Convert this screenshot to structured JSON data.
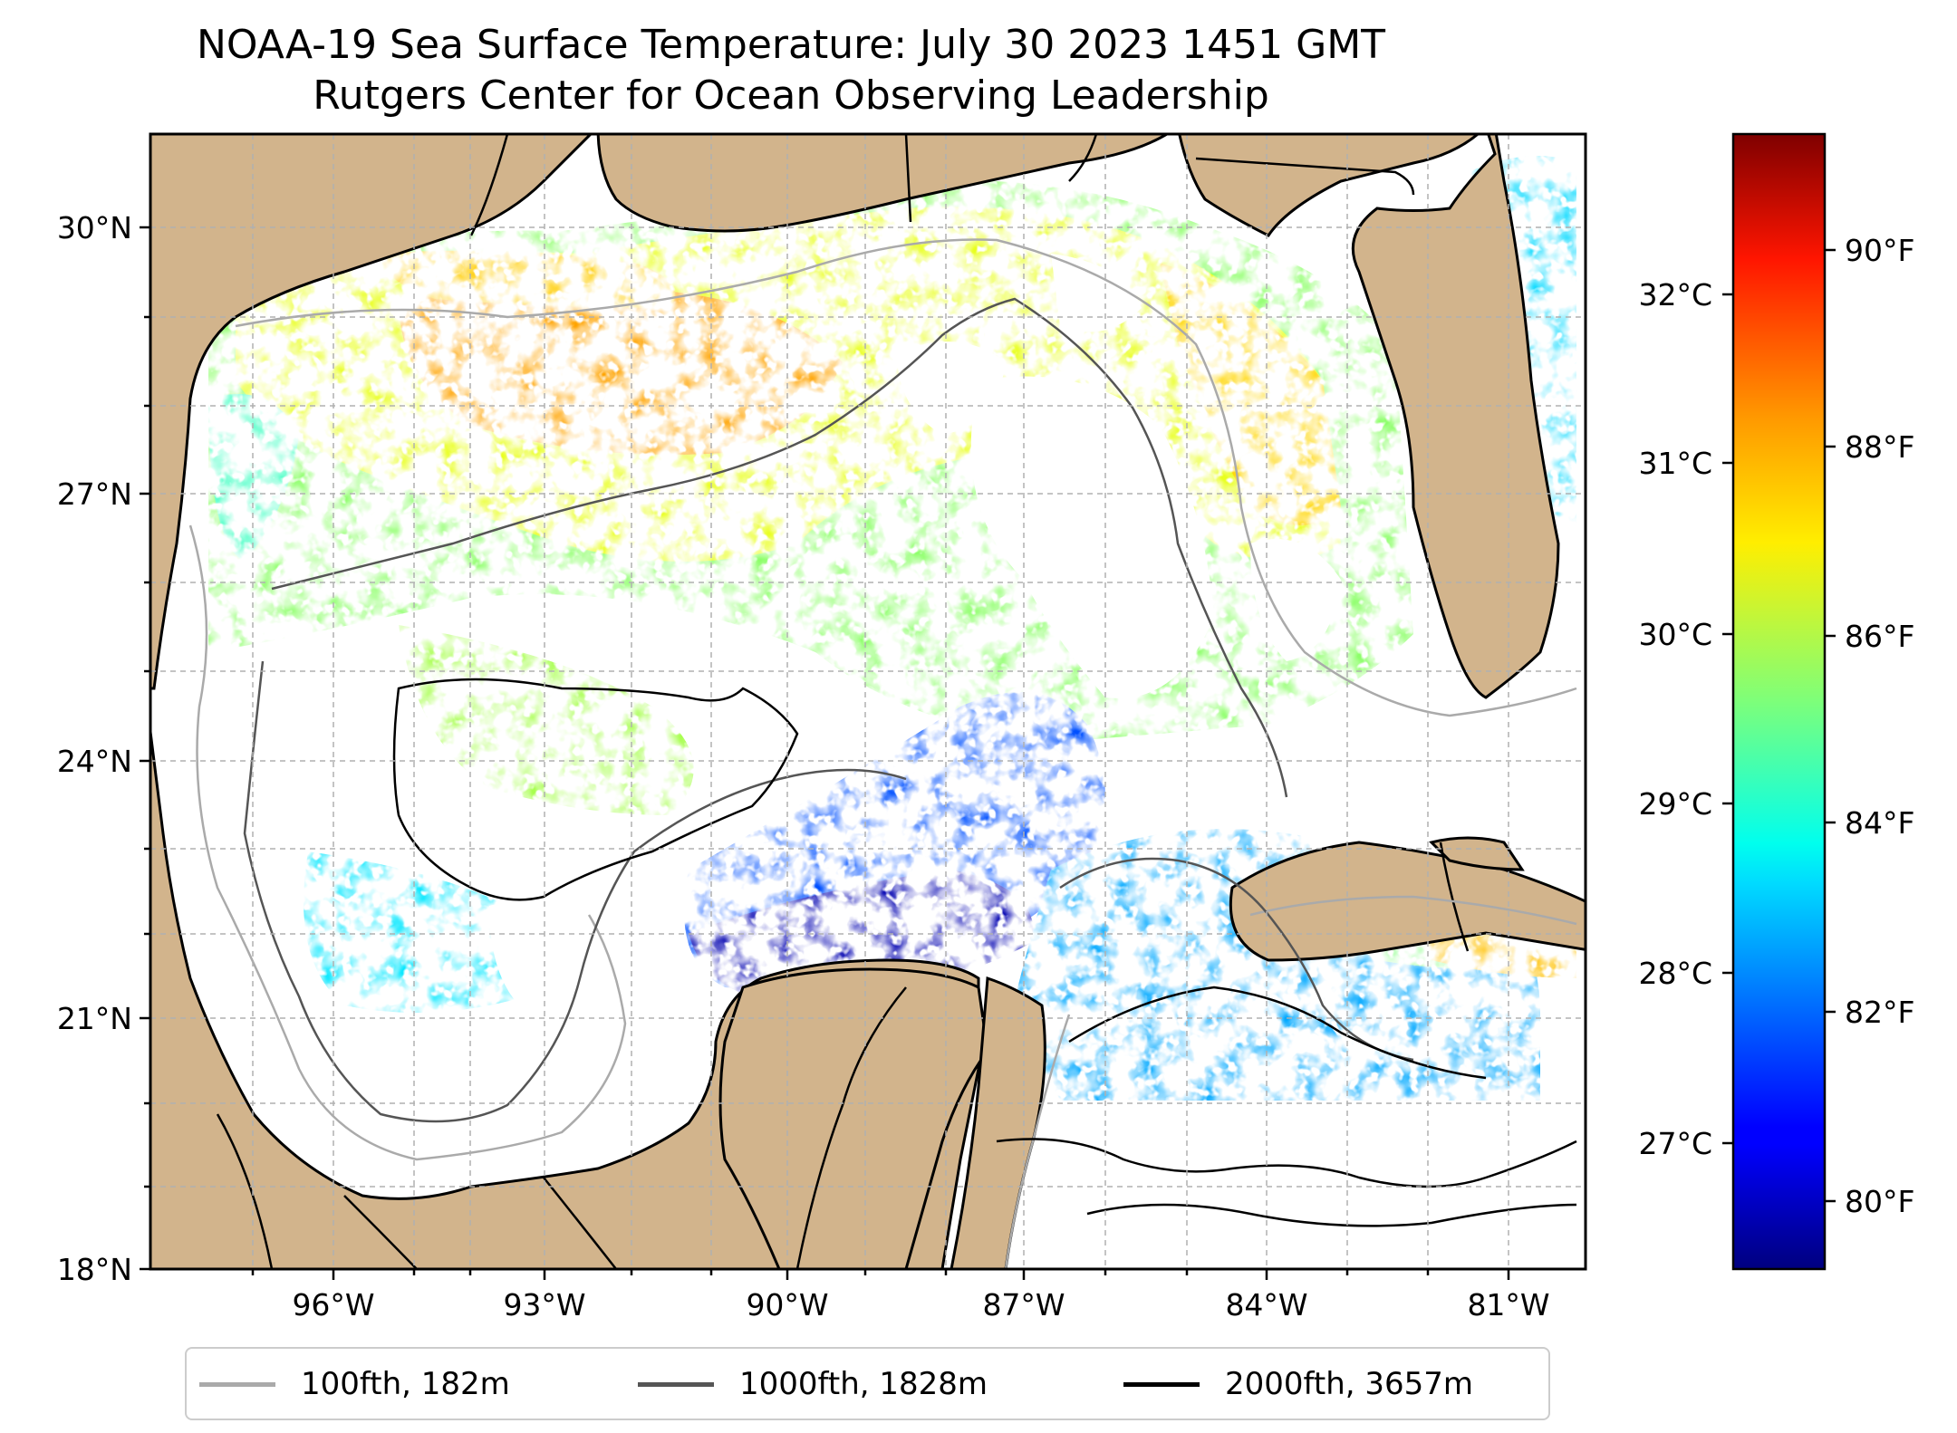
{
  "map": {
    "title_line1": "NOAA-19 Sea Surface Temperature: July 30 2023 1451 GMT",
    "title_line2": "Rutgers Center for Ocean Observing Leadership",
    "lat_ticks": [
      "30°N",
      "27°N",
      "24°N",
      "21°N",
      "18°N"
    ],
    "lon_ticks": [
      "96°W",
      "93°W",
      "90°W",
      "87°W",
      "84°W",
      "81°W"
    ],
    "colors": {
      "land": "#d2b48c",
      "no_data": "#ffffff",
      "gridline": "#b0b0b0",
      "contour_100fth": "#aaaaaa",
      "contour_1000fth": "#555555",
      "contour_2000fth": "#000000"
    }
  },
  "colorbar": {
    "colormap": "jet",
    "celsius_ticks": [
      "32°C",
      "31°C",
      "30°C",
      "29°C",
      "28°C",
      "27°C"
    ],
    "fahrenheit_ticks": [
      "90°F",
      "88°F",
      "86°F",
      "84°F",
      "82°F",
      "80°F"
    ]
  },
  "legend": {
    "items": [
      {
        "label": "100fth, 182m",
        "color": "#aaaaaa"
      },
      {
        "label": "1000fth, 1828m",
        "color": "#555555"
      },
      {
        "label": "2000fth, 3657m",
        "color": "#000000"
      }
    ]
  }
}
